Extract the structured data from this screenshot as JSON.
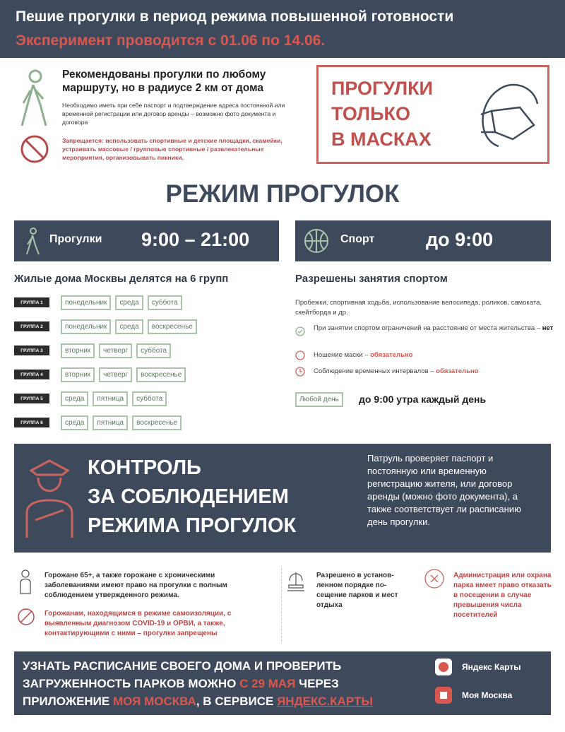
{
  "header": {
    "title": "Пешие прогулки в период режима повышенной готовности",
    "subtitle": "Эксперимент проводится с 01.06 по 14.06."
  },
  "intro": {
    "recommend": "Рекомендованы прогулки по любому маршруту, но в радиусе 2 км от дома",
    "need": "Необходимо иметь при себе паспорт и подтверждение адреса постоянной или временной регистрации или договор аренды – возможно фото документа и договора",
    "ban": "Запрещается: использовать спортивные и детские площадки, скамейки, устраивать массовые / групповые спортивные / развлекательные мероприятия, организовывать пикники."
  },
  "mask_box": {
    "line1": "ПРОГУЛКИ",
    "line2": "ТОЛЬКО",
    "line3": "В МАСКАХ"
  },
  "mode_title": "РЕЖИМ ПРОГУЛОК",
  "walks": {
    "label": "Прогулки",
    "time": "9:00 – 21:00",
    "heading": "Жилые дома Москвы делятся на 6 групп",
    "groups": [
      {
        "name": "ГРУППА 1",
        "days": [
          "понедельник",
          "среда",
          "суббота"
        ]
      },
      {
        "name": "ГРУППА 2",
        "days": [
          "понедельник",
          "среда",
          "воскресенье"
        ]
      },
      {
        "name": "ГРУППА 3",
        "days": [
          "вторник",
          "четверг",
          "суббота"
        ]
      },
      {
        "name": "ГРУППА 4",
        "days": [
          "вторник",
          "четверг",
          "воскресенье"
        ]
      },
      {
        "name": "ГРУППА 5",
        "days": [
          "среда",
          "пятница",
          "суббота"
        ]
      },
      {
        "name": "ГРУППА 6",
        "days": [
          "среда",
          "пятница",
          "воскресенье"
        ]
      }
    ]
  },
  "sport": {
    "label": "Спорт",
    "time": "до 9:00",
    "heading": "Разрешены занятия спортом",
    "desc": "Пробежки, спортивная ходьба, использование велосипеда, роликов, самоката, скейтборда и др.",
    "rule1": "При занятии спортом ограничений на расстояние от места жительства – ",
    "rule1_value": "нет",
    "rule2": "Ношение маски – ",
    "rule2_value": "обязательно",
    "rule3": "Соблюдение временных интервалов – ",
    "rule3_value": "обязательно",
    "any_day": "Любой день",
    "any_day_time": "до 9:00 утра каждый день"
  },
  "control": {
    "line1": "КОНТРОЛЬ",
    "line2": "ЗА СОБЛЮДЕНИЕМ",
    "line3": "РЕЖИМА ПРОГУЛОК",
    "side": "Патруль проверяет паспорт и постоянную или временную регистрацию жителя, или договор аренды (можно фото документа), а также соответствует ли расписанию день прогулки."
  },
  "info": {
    "elderly": "Горожане 65+, а также горожане с хроническими заболеваниями имеют право на прогулки с полным соблюдением утвержденного режима.",
    "isolation": "Горожанам, находящимся в режиме самоизоляции, с выявленным диагнозом COVID-19 и ОРВИ, а также, контактирующими с ними – прогулки запрещены",
    "parks": "Разрешено в установ-ленном порядке по-сещение парков и мест отдыха",
    "refuse": "Администрация или охрана парка имеет право отказать в посещении в случае превышения числа посетителей"
  },
  "footer": {
    "p1": "УЗНАТЬ РАСПИСАНИЕ СВОЕГО ДОМА И ПРОВЕРИТЬ",
    "p2a": "ЗАГРУЖЕННОСТЬ ПАРКОВ МОЖНО ",
    "p2b": "С 29 МАЯ",
    "p2c": " ЧЕРЕЗ",
    "p3a": "ПРИЛОЖЕНИЕ ",
    "p3b": "МОЯ МОСКВА",
    "p3c": ", В СЕРВИСЕ ",
    "p3d": "ЯНДЕКС.КАРТЫ",
    "app1": "Яндекс Карты",
    "app2": "Моя Москва"
  },
  "colors": {
    "navy": "#3e4a5c",
    "red": "#d9574f",
    "green": "#a9c4a9"
  }
}
